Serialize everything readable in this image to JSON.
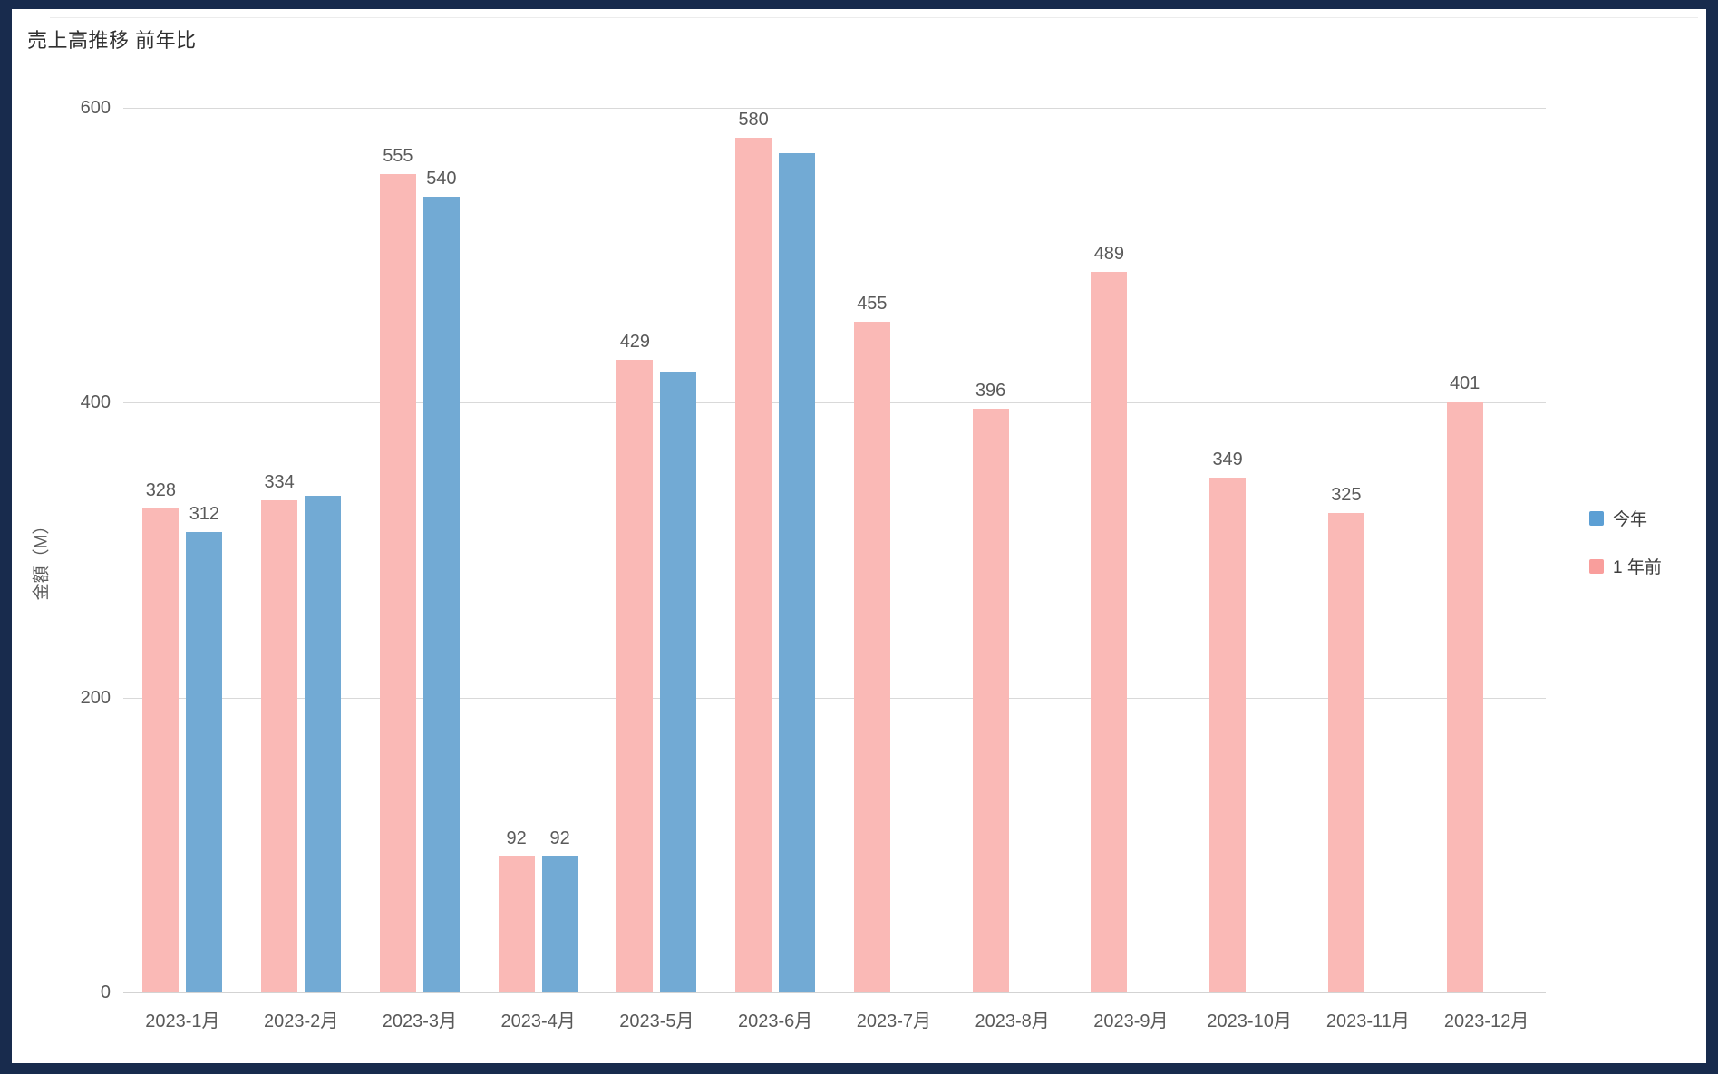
{
  "frame": {
    "border_color": "#182b4d",
    "surface_color": "#ffffff"
  },
  "header": {
    "title": "売上高推移 前年比"
  },
  "y_axis": {
    "title": "金額（M）"
  },
  "legend": {
    "items": [
      {
        "label": "今年",
        "color": "#5C9FD4"
      },
      {
        "label": "1 年前",
        "color": "#F99E9C"
      }
    ]
  },
  "chart_data": {
    "type": "bar",
    "title": "売上高推移 前年比",
    "xlabel": "",
    "ylabel": "金額（M）",
    "ylim": [
      0,
      600
    ],
    "y_ticks": [
      0,
      200,
      400,
      600
    ],
    "grid": true,
    "legend_position": "right",
    "categories": [
      "2023-1月",
      "2023-2月",
      "2023-3月",
      "2023-4月",
      "2023-5月",
      "2023-6月",
      "2023-7月",
      "2023-8月",
      "2023-9月",
      "2023-10月",
      "2023-11月",
      "2023-12月"
    ],
    "series": [
      {
        "name": "今年",
        "side": "right",
        "color": "#72AAD4",
        "legend_color": "#5C9FD4",
        "values": [
          312,
          337,
          540,
          92,
          421,
          569,
          null,
          null,
          null,
          null,
          null,
          null
        ],
        "data_labels": [
          "312",
          "",
          "540",
          "92",
          "",
          "",
          "",
          "",
          "",
          "",
          "",
          ""
        ]
      },
      {
        "name": "1 年前",
        "side": "left",
        "color": "#FAB9B6",
        "legend_color": "#F99E9C",
        "values": [
          328,
          334,
          555,
          92,
          429,
          580,
          455,
          396,
          489,
          349,
          325,
          401
        ],
        "data_labels": [
          "328",
          "334",
          "555",
          "92",
          "429",
          "580",
          "455",
          "396",
          "489",
          "349",
          "325",
          "401"
        ]
      }
    ]
  }
}
